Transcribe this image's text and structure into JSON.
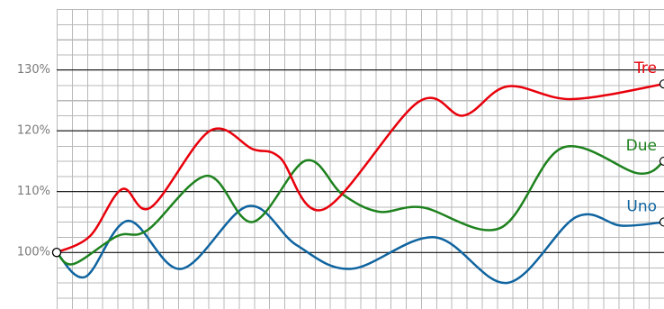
{
  "chart_data": {
    "type": "line",
    "xlim": [
      0,
      40
    ],
    "ylim": [
      90.7,
      141.5
    ],
    "yticks": [
      {
        "value": 100,
        "label": "100%"
      },
      {
        "value": 110,
        "label": "110%"
      },
      {
        "value": 120,
        "label": "120%"
      },
      {
        "value": 130,
        "label": "130%"
      }
    ],
    "grid": true,
    "series": [
      {
        "name": "Uno",
        "color": "#0f64a0",
        "x": [
          0,
          1.9,
          4.7,
          8.2,
          12.6,
          15.8,
          19.4,
          24.9,
          29.7,
          34.2,
          37.2,
          40
        ],
        "values": [
          100,
          96,
          105.2,
          97.3,
          107.6,
          101.2,
          97.3,
          102.5,
          95,
          105.8,
          104.4,
          105
        ]
      },
      {
        "name": "Due",
        "color": "#1e821e",
        "x": [
          0,
          1.1,
          4,
          6,
          9.9,
          12.9,
          16.4,
          18.8,
          21.2,
          24.1,
          29.2,
          33.3,
          38.3,
          40
        ],
        "values": [
          100,
          98.1,
          102.7,
          103.7,
          112.6,
          105,
          115.1,
          109.6,
          106.7,
          107.4,
          104,
          117.2,
          113,
          115
        ]
      },
      {
        "name": "Tre",
        "color": "#e8000b",
        "x": [
          0,
          2.2,
          4.3,
          6.2,
          10.1,
          12.9,
          14.7,
          17.6,
          23.8,
          26.8,
          29.7,
          33.9,
          40
        ],
        "values": [
          100,
          102.7,
          110.4,
          107.4,
          120,
          117,
          115.6,
          107.1,
          124.7,
          122.5,
          127.3,
          125.2,
          127.7
        ]
      }
    ]
  }
}
